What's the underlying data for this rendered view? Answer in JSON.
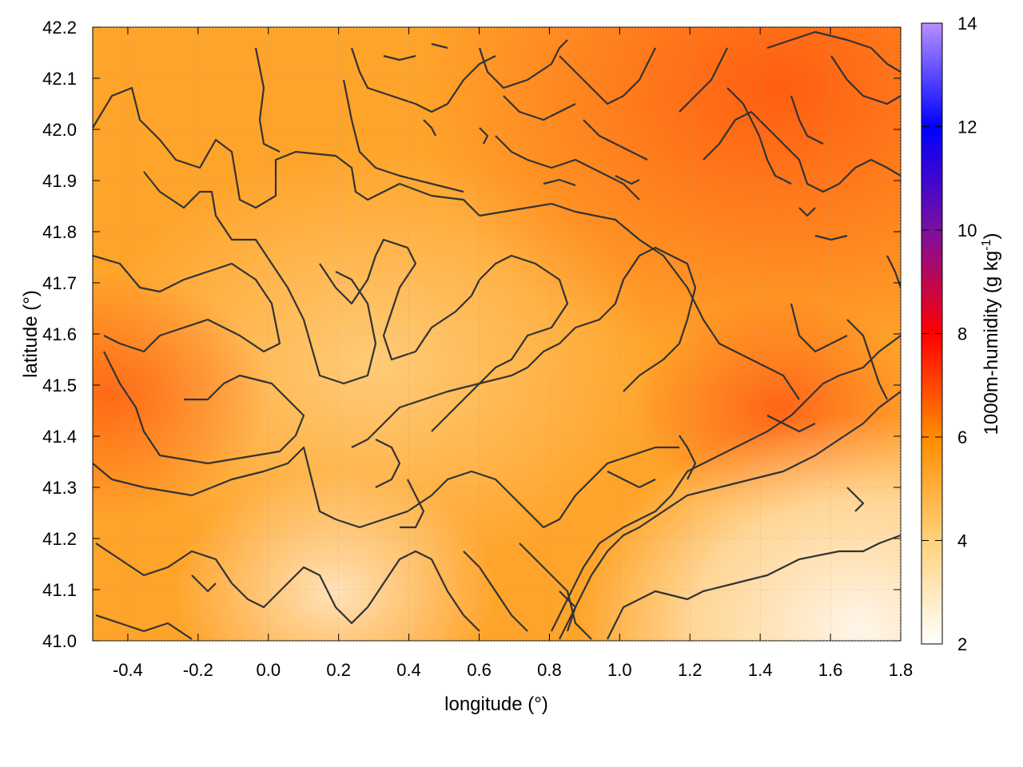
{
  "chart_data": {
    "type": "heatmap",
    "xlabel": "longitude (°)",
    "ylabel": "latitude (°)",
    "xlim": [
      -0.5,
      1.8
    ],
    "ylim": [
      41.0,
      42.2
    ],
    "xticks": [
      "-0.4",
      "-0.2",
      "0.0",
      "0.2",
      "0.4",
      "0.6",
      "0.8",
      "1.0",
      "1.2",
      "1.4",
      "1.6",
      "1.8"
    ],
    "yticks": [
      "41.0",
      "41.1",
      "41.2",
      "41.3",
      "41.4",
      "41.5",
      "41.6",
      "41.7",
      "41.8",
      "41.9",
      "42.0",
      "42.1",
      "42.2"
    ],
    "grid": true,
    "colorbar": {
      "label": "1000m-humidity (g kg",
      "label_sup": "-1",
      "label_end": ")",
      "range": [
        2,
        14
      ],
      "ticks": [
        "2",
        "4",
        "6",
        "8",
        "10",
        "12",
        "14"
      ],
      "colors": [
        "#ffffff",
        "#ffd27a",
        "#ff8c00",
        "#ff0000",
        "#5a0fb0",
        "#0000ff",
        "#b690ff"
      ]
    },
    "field_description_values": [
      {
        "region": "north-east",
        "approx_value": 6.5
      },
      {
        "region": "south-west",
        "approx_value": 6.0
      },
      {
        "region": "center",
        "approx_value": 4.5
      },
      {
        "region": "south-east coast",
        "approx_value": 2.8
      }
    ]
  }
}
